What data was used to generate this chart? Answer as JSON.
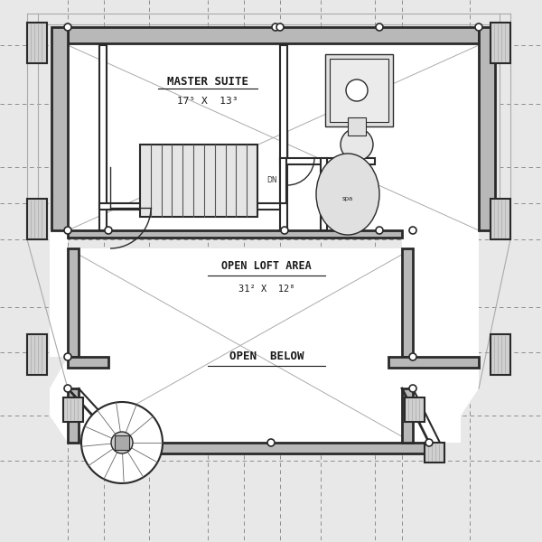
{
  "bg_color": "#e8e8e8",
  "wall_color": "#2a2a2a",
  "fill_floor": "#ffffff",
  "fill_wall": "#c8c8c8",
  "fill_log": "#b8b8b8",
  "dashed_color": "#888888",
  "diag_color": "#aaaaaa",
  "text_color": "#1a1a1a",
  "label_master": "MASTER SUITE",
  "label_master_dim": "17⁵ X  13³",
  "label_loft": "OPEN LOFT AREA",
  "label_loft_dim": "31² X  12⁸",
  "label_below": "OPEN  BELOW",
  "label_dn": "DN",
  "label_spa": "spa"
}
